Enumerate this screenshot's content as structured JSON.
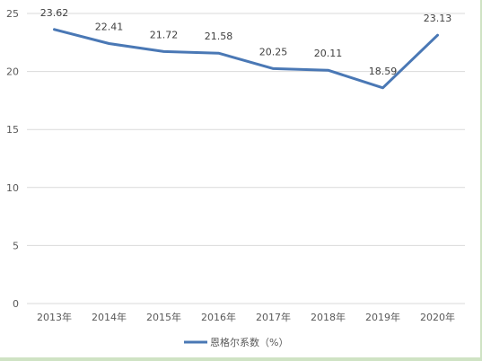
{
  "chart_data": {
    "type": "line",
    "categories": [
      "2013年",
      "2014年",
      "2015年",
      "2016年",
      "2017年",
      "2018年",
      "2019年",
      "2020年"
    ],
    "series": [
      {
        "name": "恩格尔系数（%）",
        "values": [
          23.62,
          22.41,
          21.72,
          21.58,
          20.25,
          20.11,
          18.59,
          23.13
        ]
      }
    ],
    "data_labels": [
      "23.62",
      "22.41",
      "21.72",
      "21.58",
      "20.25",
      "20.11",
      "18.59",
      "23.13"
    ],
    "y_ticks": [
      "0",
      "5",
      "10",
      "15",
      "20",
      "25"
    ],
    "ylim": [
      0,
      25
    ],
    "grid": true,
    "legend": "bottom",
    "line_color": "#4a78b5",
    "grid_color": "#d9d9d9"
  }
}
